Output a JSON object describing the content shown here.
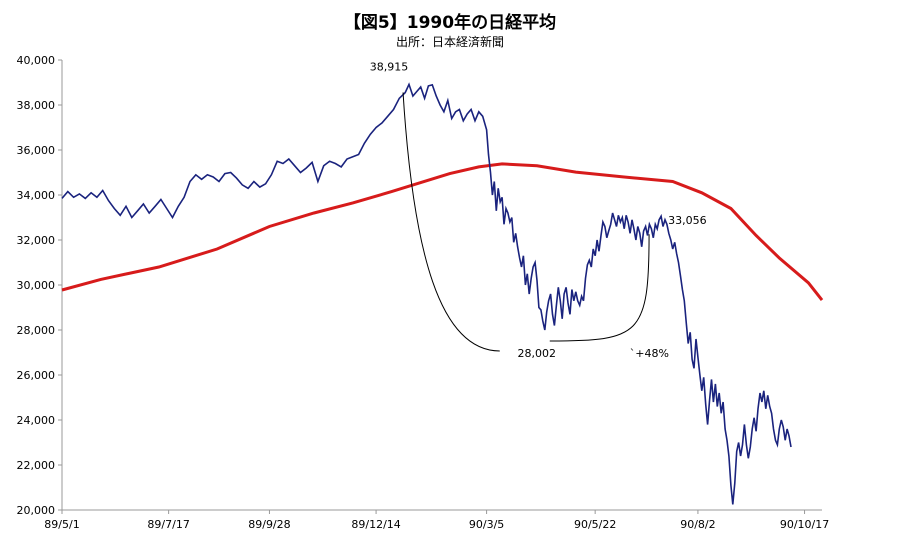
{
  "chart_data": {
    "type": "line",
    "title": "【図5】1990年の日経平均",
    "subtitle": "出所：日本経済新聞",
    "ylim": [
      20000,
      40000
    ],
    "y_ticks": [
      "20,000",
      "22,000",
      "24,000",
      "26,000",
      "28,000",
      "30,000",
      "32,000",
      "34,000",
      "36,000",
      "38,000",
      "40,000"
    ],
    "y_tick_values": [
      20000,
      22000,
      24000,
      26000,
      28000,
      30000,
      32000,
      34000,
      36000,
      38000,
      40000
    ],
    "x_ticks": [
      "89/5/1",
      "89/7/17",
      "89/9/28",
      "89/12/14",
      "90/3/5",
      "90/5/22",
      "90/8/2",
      "90/10/17"
    ],
    "x_tick_index": [
      0,
      55,
      107,
      162,
      219,
      275,
      328,
      383
    ],
    "x_count": 393,
    "grid": false,
    "series": [
      {
        "role": "index",
        "color": "#1a237e",
        "points": [
          [
            0,
            33850
          ],
          [
            3,
            34150
          ],
          [
            6,
            33900
          ],
          [
            9,
            34050
          ],
          [
            12,
            33850
          ],
          [
            15,
            34100
          ],
          [
            18,
            33900
          ],
          [
            21,
            34200
          ],
          [
            24,
            33750
          ],
          [
            27,
            33400
          ],
          [
            30,
            33100
          ],
          [
            33,
            33500
          ],
          [
            36,
            33000
          ],
          [
            39,
            33300
          ],
          [
            42,
            33600
          ],
          [
            45,
            33200
          ],
          [
            48,
            33500
          ],
          [
            51,
            33800
          ],
          [
            54,
            33400
          ],
          [
            57,
            33000
          ],
          [
            60,
            33500
          ],
          [
            63,
            33900
          ],
          [
            66,
            34600
          ],
          [
            69,
            34900
          ],
          [
            72,
            34700
          ],
          [
            75,
            34900
          ],
          [
            78,
            34800
          ],
          [
            81,
            34600
          ],
          [
            84,
            34950
          ],
          [
            87,
            35000
          ],
          [
            90,
            34750
          ],
          [
            93,
            34450
          ],
          [
            96,
            34300
          ],
          [
            99,
            34600
          ],
          [
            102,
            34350
          ],
          [
            105,
            34500
          ],
          [
            108,
            34900
          ],
          [
            111,
            35500
          ],
          [
            114,
            35400
          ],
          [
            117,
            35600
          ],
          [
            120,
            35300
          ],
          [
            123,
            35000
          ],
          [
            126,
            35200
          ],
          [
            129,
            35450
          ],
          [
            132,
            34600
          ],
          [
            135,
            35300
          ],
          [
            138,
            35500
          ],
          [
            141,
            35400
          ],
          [
            144,
            35250
          ],
          [
            147,
            35600
          ],
          [
            150,
            35700
          ],
          [
            153,
            35800
          ],
          [
            156,
            36300
          ],
          [
            159,
            36700
          ],
          [
            162,
            37000
          ],
          [
            165,
            37200
          ],
          [
            168,
            37500
          ],
          [
            171,
            37800
          ],
          [
            174,
            38300
          ],
          [
            177,
            38550
          ],
          [
            179,
            38915
          ],
          [
            181,
            38400
          ],
          [
            183,
            38600
          ],
          [
            185,
            38800
          ],
          [
            187,
            38300
          ],
          [
            189,
            38850
          ],
          [
            191,
            38900
          ],
          [
            193,
            38400
          ],
          [
            195,
            38000
          ],
          [
            197,
            37700
          ],
          [
            199,
            38200
          ],
          [
            201,
            37400
          ],
          [
            203,
            37700
          ],
          [
            205,
            37800
          ],
          [
            207,
            37300
          ],
          [
            209,
            37600
          ],
          [
            211,
            37800
          ],
          [
            213,
            37300
          ],
          [
            215,
            37700
          ],
          [
            217,
            37500
          ],
          [
            219,
            36900
          ],
          [
            220,
            35800
          ],
          [
            221,
            35000
          ],
          [
            222,
            34000
          ],
          [
            223,
            34600
          ],
          [
            224,
            33300
          ],
          [
            225,
            34300
          ],
          [
            226,
            33700
          ],
          [
            227,
            33900
          ],
          [
            228,
            32700
          ],
          [
            229,
            33400
          ],
          [
            230,
            33200
          ],
          [
            231,
            32800
          ],
          [
            232,
            33000
          ],
          [
            233,
            31900
          ],
          [
            234,
            32300
          ],
          [
            235,
            31700
          ],
          [
            236,
            31200
          ],
          [
            237,
            30800
          ],
          [
            238,
            31300
          ],
          [
            239,
            30000
          ],
          [
            240,
            30500
          ],
          [
            241,
            29600
          ],
          [
            242,
            30300
          ],
          [
            243,
            30800
          ],
          [
            244,
            31000
          ],
          [
            245,
            30200
          ],
          [
            246,
            29000
          ],
          [
            247,
            28900
          ],
          [
            248,
            28400
          ],
          [
            249,
            28002
          ],
          [
            250,
            28800
          ],
          [
            251,
            29300
          ],
          [
            252,
            29600
          ],
          [
            253,
            28700
          ],
          [
            254,
            28200
          ],
          [
            255,
            29100
          ],
          [
            256,
            29900
          ],
          [
            257,
            29300
          ],
          [
            258,
            28500
          ],
          [
            259,
            29600
          ],
          [
            260,
            29900
          ],
          [
            261,
            29200
          ],
          [
            262,
            28700
          ],
          [
            263,
            29800
          ],
          [
            264,
            29300
          ],
          [
            265,
            29700
          ],
          [
            266,
            29300
          ],
          [
            267,
            29100
          ],
          [
            268,
            29500
          ],
          [
            269,
            29300
          ],
          [
            270,
            30300
          ],
          [
            271,
            30900
          ],
          [
            272,
            31100
          ],
          [
            273,
            30800
          ],
          [
            274,
            31600
          ],
          [
            275,
            31300
          ],
          [
            276,
            32000
          ],
          [
            277,
            31500
          ],
          [
            278,
            32200
          ],
          [
            279,
            32800
          ],
          [
            280,
            32600
          ],
          [
            281,
            32100
          ],
          [
            282,
            32400
          ],
          [
            283,
            32700
          ],
          [
            284,
            33200
          ],
          [
            285,
            32900
          ],
          [
            286,
            32600
          ],
          [
            287,
            33100
          ],
          [
            288,
            32800
          ],
          [
            289,
            33000
          ],
          [
            290,
            32500
          ],
          [
            291,
            33100
          ],
          [
            292,
            32800
          ],
          [
            293,
            32300
          ],
          [
            294,
            32900
          ],
          [
            295,
            32500
          ],
          [
            296,
            32000
          ],
          [
            297,
            32600
          ],
          [
            298,
            32300
          ],
          [
            299,
            31700
          ],
          [
            300,
            32400
          ],
          [
            301,
            32600
          ],
          [
            302,
            32200
          ],
          [
            303,
            32700
          ],
          [
            304,
            32500
          ],
          [
            305,
            32100
          ],
          [
            306,
            32700
          ],
          [
            307,
            32500
          ],
          [
            308,
            32900
          ],
          [
            309,
            33056
          ],
          [
            310,
            32600
          ],
          [
            311,
            32900
          ],
          [
            312,
            32700
          ],
          [
            313,
            32300
          ],
          [
            314,
            32000
          ],
          [
            315,
            31600
          ],
          [
            316,
            31900
          ],
          [
            317,
            31400
          ],
          [
            318,
            31000
          ],
          [
            319,
            30400
          ],
          [
            320,
            29800
          ],
          [
            321,
            29300
          ],
          [
            322,
            28300
          ],
          [
            323,
            27400
          ],
          [
            324,
            27900
          ],
          [
            325,
            26700
          ],
          [
            326,
            26300
          ],
          [
            327,
            27600
          ],
          [
            328,
            26800
          ],
          [
            329,
            26000
          ],
          [
            330,
            25300
          ],
          [
            331,
            25900
          ],
          [
            332,
            24700
          ],
          [
            333,
            23800
          ],
          [
            334,
            24900
          ],
          [
            335,
            25800
          ],
          [
            336,
            24800
          ],
          [
            337,
            25600
          ],
          [
            338,
            24600
          ],
          [
            339,
            25200
          ],
          [
            340,
            24300
          ],
          [
            341,
            24800
          ],
          [
            342,
            23600
          ],
          [
            343,
            23100
          ],
          [
            344,
            22400
          ],
          [
            345,
            21100
          ],
          [
            346,
            20250
          ],
          [
            347,
            21200
          ],
          [
            348,
            22600
          ],
          [
            349,
            23000
          ],
          [
            350,
            22400
          ],
          [
            351,
            22900
          ],
          [
            352,
            23800
          ],
          [
            353,
            22900
          ],
          [
            354,
            22300
          ],
          [
            355,
            22800
          ],
          [
            356,
            23600
          ],
          [
            357,
            24100
          ],
          [
            358,
            23500
          ],
          [
            359,
            24500
          ],
          [
            360,
            25200
          ],
          [
            361,
            24800
          ],
          [
            362,
            25300
          ],
          [
            363,
            24500
          ],
          [
            364,
            25100
          ],
          [
            365,
            24600
          ],
          [
            366,
            24300
          ],
          [
            367,
            23600
          ],
          [
            368,
            23100
          ],
          [
            369,
            22900
          ],
          [
            370,
            23600
          ],
          [
            371,
            24000
          ],
          [
            372,
            23700
          ],
          [
            373,
            23100
          ],
          [
            374,
            23600
          ],
          [
            375,
            23300
          ],
          [
            376,
            22800
          ]
        ]
      },
      {
        "role": "moving-average",
        "color": "#d71b1b",
        "points": [
          [
            0,
            29780
          ],
          [
            20,
            30250
          ],
          [
            50,
            30800
          ],
          [
            80,
            31600
          ],
          [
            107,
            32600
          ],
          [
            130,
            33200
          ],
          [
            150,
            33650
          ],
          [
            170,
            34150
          ],
          [
            185,
            34550
          ],
          [
            200,
            34950
          ],
          [
            215,
            35250
          ],
          [
            227,
            35380
          ],
          [
            245,
            35300
          ],
          [
            265,
            35020
          ],
          [
            290,
            34800
          ],
          [
            315,
            34600
          ],
          [
            330,
            34100
          ],
          [
            345,
            33400
          ],
          [
            358,
            32200
          ],
          [
            370,
            31200
          ],
          [
            385,
            30100
          ],
          [
            392,
            29330
          ]
        ]
      }
    ],
    "annotations": {
      "peak_label": "38,915",
      "trough_label": "28,002",
      "rebound_label": "33,056",
      "pct_label": "`+48%"
    }
  }
}
